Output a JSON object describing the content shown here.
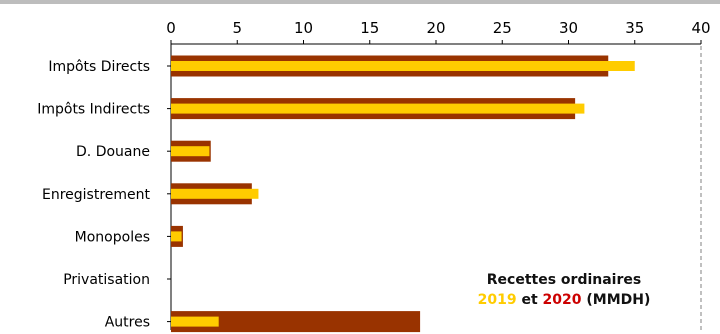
{
  "chart_data": {
    "type": "bar",
    "orientation": "horizontal",
    "categories": [
      "Impôts Directs",
      "Impôts Indirects",
      "D. Douane",
      "Enregistrement",
      "Monopoles",
      "Privatisation",
      "Autres"
    ],
    "series": [
      {
        "name": "2020",
        "color": "#993300",
        "values": [
          33.0,
          30.5,
          3.0,
          6.1,
          0.9,
          0,
          18.8
        ]
      },
      {
        "name": "2019",
        "color": "#ffcc00",
        "values": [
          35.0,
          31.2,
          2.9,
          6.6,
          0.8,
          0,
          3.6
        ]
      }
    ],
    "xlim": [
      0,
      40
    ],
    "xticks": [
      "0",
      "5",
      "10",
      "15",
      "20",
      "25",
      "30",
      "35",
      "40"
    ],
    "axis_position": "top",
    "grid": false,
    "legend": {
      "title": "Recettes ordinaires",
      "year1": "2019",
      "conjunction": "et",
      "year2": "2020",
      "unit": "(MMDH)",
      "year1_color": "#ffcc00",
      "year2_color": "#cc0000",
      "placement": "bottom-right"
    }
  }
}
